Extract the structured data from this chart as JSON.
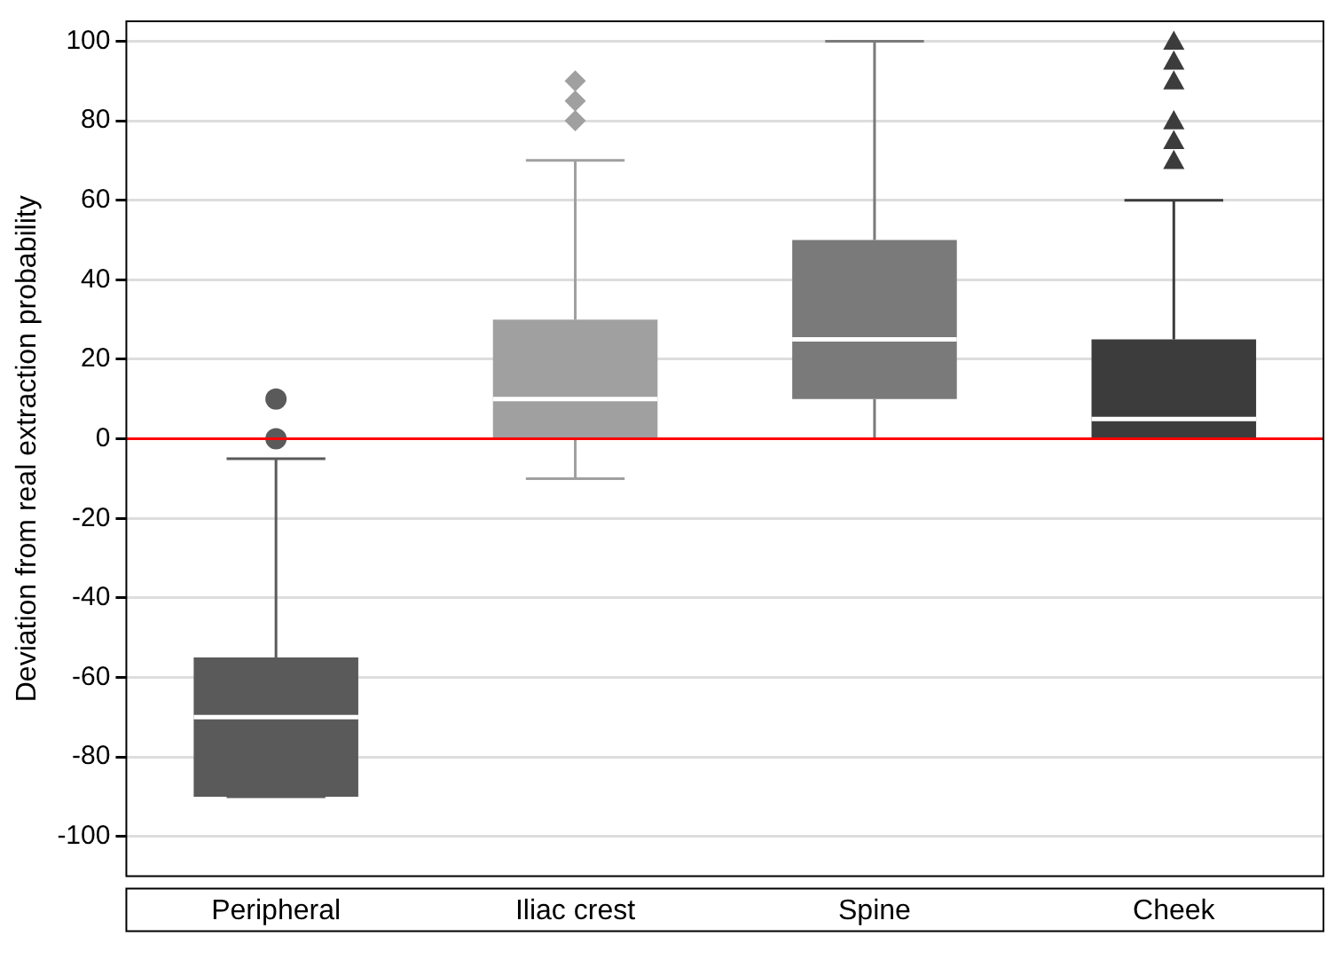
{
  "chart_data": {
    "type": "box",
    "ylabel": "Deviation from real extraction probability",
    "categories": [
      "Peripheral",
      "Iliac crest",
      "Spine",
      "Cheek"
    ],
    "series": [
      {
        "color": "#5a5a5a",
        "marker": "circle",
        "boxes": [
          {
            "low": -90,
            "q1": -90,
            "median": -70,
            "q3": -55,
            "high": -5,
            "outliers": [
              0,
              10
            ]
          },
          null,
          null,
          null
        ]
      },
      {
        "color": "#a0a0a0",
        "marker": "diamond",
        "boxes": [
          null,
          {
            "low": -10,
            "q1": 0,
            "median": 10,
            "q3": 30,
            "high": 70,
            "outliers": [
              80,
              85,
              90
            ]
          },
          null,
          null
        ]
      },
      {
        "color": "#7a7a7a",
        "boxes": [
          null,
          null,
          {
            "low": 0,
            "q1": 10,
            "median": 25,
            "q3": 50,
            "high": 100
          },
          null
        ]
      },
      {
        "color": "#3c3c3c",
        "marker": "triangle",
        "boxes": [
          null,
          null,
          null,
          {
            "low": 0,
            "q1": 0,
            "median": 5,
            "q3": 25,
            "high": 60,
            "outliers": [
              70,
              75,
              80,
              90,
              95,
              100
            ]
          }
        ]
      }
    ],
    "ylim": [
      -110,
      105
    ],
    "yticks": [
      -100,
      -80,
      -60,
      -40,
      -20,
      0,
      20,
      40,
      60,
      80,
      100
    ],
    "grid": "y",
    "legend": false,
    "ref_lines": [
      {
        "axis": "y",
        "value": 0,
        "color": "#ff0000"
      }
    ]
  }
}
